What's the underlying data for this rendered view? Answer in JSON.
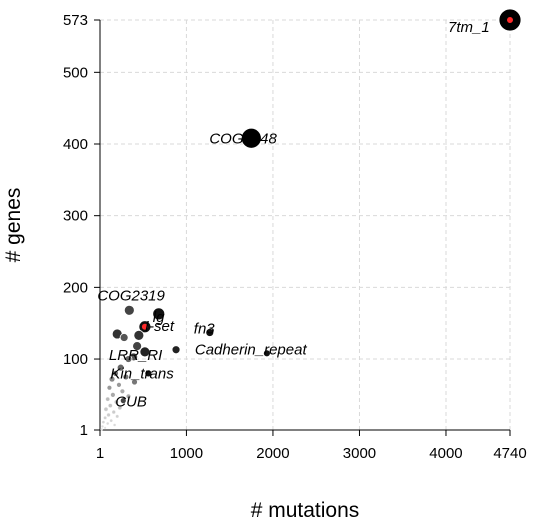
{
  "chart_data": {
    "type": "scatter",
    "xlabel": "# mutations",
    "ylabel": "# genes",
    "xlim": [
      1,
      4740
    ],
    "ylim": [
      1,
      573
    ],
    "x_ticks": [
      1,
      1000,
      2000,
      3000,
      4000,
      4740
    ],
    "y_ticks": [
      1,
      100,
      200,
      300,
      400,
      500,
      573
    ],
    "grid": true,
    "annotations": [
      {
        "label": "7tm_1",
        "x": 4740,
        "y": 573
      },
      {
        "label": "COG5048",
        "x": 1750,
        "y": 408
      },
      {
        "label": "COG2319",
        "x": 340,
        "y": 168
      },
      {
        "label": "lg",
        "x": 680,
        "y": 163
      },
      {
        "label": "I-set",
        "x": 520,
        "y": 142
      },
      {
        "label": "fn3",
        "x": 1270,
        "y": 137
      },
      {
        "label": "Cadherin_repeat",
        "x": 1930,
        "y": 108
      },
      {
        "label": "LRR_RI",
        "x": 520,
        "y": 110
      },
      {
        "label": "Kin_trans",
        "x": 560,
        "y": 80
      },
      {
        "label": "CUB",
        "x": 270,
        "y": 42
      }
    ],
    "points": [
      {
        "x": 4740,
        "y": 573,
        "size": 11,
        "color": "#000000"
      },
      {
        "x": 4740,
        "y": 573,
        "size": 3,
        "color": "#ff2a2a"
      },
      {
        "x": 1750,
        "y": 408,
        "size": 10,
        "color": "#000000"
      },
      {
        "x": 340,
        "y": 168,
        "size": 5,
        "color": "#444444"
      },
      {
        "x": 680,
        "y": 163,
        "size": 6,
        "color": "#111111"
      },
      {
        "x": 520,
        "y": 145,
        "size": 6,
        "color": "#111111"
      },
      {
        "x": 520,
        "y": 145,
        "size": 3,
        "color": "#ff2a2a"
      },
      {
        "x": 1270,
        "y": 137,
        "size": 4,
        "color": "#111111"
      },
      {
        "x": 1930,
        "y": 108,
        "size": 3.5,
        "color": "#111111"
      },
      {
        "x": 200,
        "y": 135,
        "size": 5,
        "color": "#333333"
      },
      {
        "x": 450,
        "y": 133,
        "size": 5,
        "color": "#333333"
      },
      {
        "x": 280,
        "y": 130,
        "size": 4,
        "color": "#555555"
      },
      {
        "x": 430,
        "y": 118,
        "size": 4.5,
        "color": "#444444"
      },
      {
        "x": 520,
        "y": 110,
        "size": 5,
        "color": "#222222"
      },
      {
        "x": 390,
        "y": 103,
        "size": 4,
        "color": "#555555"
      },
      {
        "x": 880,
        "y": 113,
        "size": 4,
        "color": "#222222"
      },
      {
        "x": 330,
        "y": 100,
        "size": 3.5,
        "color": "#666666"
      },
      {
        "x": 240,
        "y": 88,
        "size": 3.5,
        "color": "#666666"
      },
      {
        "x": 180,
        "y": 80,
        "size": 3,
        "color": "#777777"
      },
      {
        "x": 560,
        "y": 80,
        "size": 3.5,
        "color": "#111111"
      },
      {
        "x": 300,
        "y": 75,
        "size": 3,
        "color": "#777777"
      },
      {
        "x": 140,
        "y": 72,
        "size": 3,
        "color": "#888888"
      },
      {
        "x": 400,
        "y": 68,
        "size": 3,
        "color": "#777777"
      },
      {
        "x": 220,
        "y": 64,
        "size": 2.5,
        "color": "#999999"
      },
      {
        "x": 110,
        "y": 60,
        "size": 2.5,
        "color": "#999999"
      },
      {
        "x": 260,
        "y": 55,
        "size": 2.5,
        "color": "#aaaaaa"
      },
      {
        "x": 150,
        "y": 50,
        "size": 2.5,
        "color": "#aaaaaa"
      },
      {
        "x": 330,
        "y": 48,
        "size": 2.5,
        "color": "#aaaaaa"
      },
      {
        "x": 90,
        "y": 44,
        "size": 2,
        "color": "#bbbbbb"
      },
      {
        "x": 270,
        "y": 42,
        "size": 3,
        "color": "#444444"
      },
      {
        "x": 190,
        "y": 40,
        "size": 2,
        "color": "#bbbbbb"
      },
      {
        "x": 120,
        "y": 35,
        "size": 2,
        "color": "#c0c0c0"
      },
      {
        "x": 230,
        "y": 32,
        "size": 2,
        "color": "#c0c0c0"
      },
      {
        "x": 70,
        "y": 30,
        "size": 2,
        "color": "#c8c8c8"
      },
      {
        "x": 160,
        "y": 26,
        "size": 1.8,
        "color": "#cccccc"
      },
      {
        "x": 100,
        "y": 22,
        "size": 1.8,
        "color": "#cccccc"
      },
      {
        "x": 200,
        "y": 20,
        "size": 1.6,
        "color": "#d0d0d0"
      },
      {
        "x": 60,
        "y": 18,
        "size": 1.6,
        "color": "#d0d0d0"
      },
      {
        "x": 130,
        "y": 14,
        "size": 1.5,
        "color": "#d5d5d5"
      },
      {
        "x": 40,
        "y": 12,
        "size": 1.5,
        "color": "#d5d5d5"
      },
      {
        "x": 90,
        "y": 10,
        "size": 1.4,
        "color": "#dadada"
      },
      {
        "x": 170,
        "y": 8,
        "size": 1.4,
        "color": "#dadada"
      },
      {
        "x": 30,
        "y": 6,
        "size": 1.3,
        "color": "#dddddd"
      },
      {
        "x": 60,
        "y": 4,
        "size": 1.2,
        "color": "#e0e0e0"
      },
      {
        "x": 20,
        "y": 2,
        "size": 1.2,
        "color": "#e0e0e0"
      }
    ]
  }
}
